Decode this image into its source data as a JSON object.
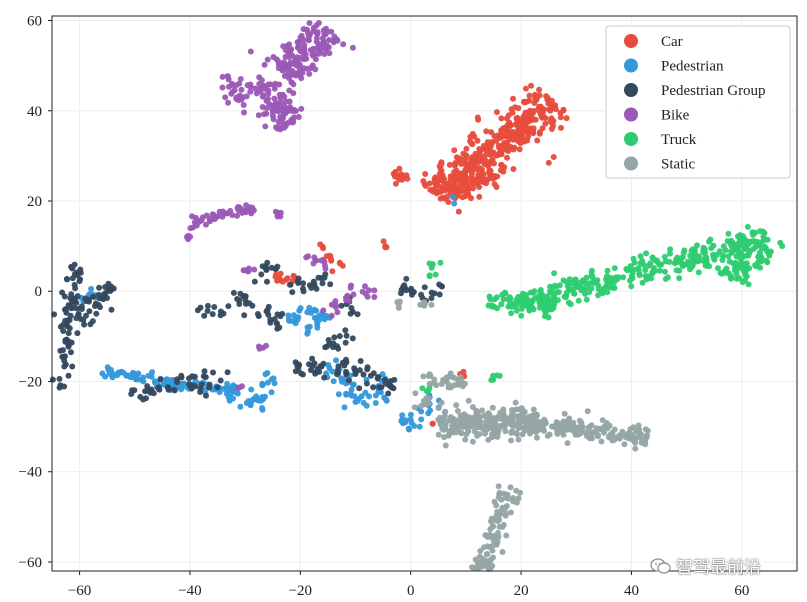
{
  "chart_data": {
    "type": "scatter",
    "title": "",
    "xlabel": "",
    "ylabel": "",
    "xlim": [
      -65,
      70
    ],
    "ylim": [
      -62,
      61
    ],
    "xticks": [
      -60,
      -40,
      -20,
      0,
      20,
      40,
      60
    ],
    "yticks": [
      -60,
      -40,
      -20,
      0,
      20,
      40,
      60
    ],
    "grid": true,
    "legend_position": "top-right",
    "series": [
      {
        "name": "Car",
        "color": "#e74c3c",
        "clusters": [
          {
            "cx": 15,
            "cy": 32,
            "len": 30,
            "width": 5,
            "angle": 43,
            "n": 360
          },
          {
            "cx": 11,
            "cy": 24,
            "len": 9,
            "width": 3,
            "angle": 20,
            "n": 60
          },
          {
            "cx": -2,
            "cy": 25.5,
            "len": 3,
            "width": 2,
            "angle": 0,
            "n": 18
          },
          {
            "cx": -23,
            "cy": 3,
            "len": 3,
            "width": 2,
            "angle": 60,
            "n": 14
          },
          {
            "cx": -14,
            "cy": 6.5,
            "len": 4,
            "width": 2,
            "angle": -60,
            "n": 10
          },
          {
            "cx": -16,
            "cy": 9.5,
            "len": 1,
            "width": 1,
            "angle": 0,
            "n": 3
          },
          {
            "cx": -5,
            "cy": 10,
            "len": 2,
            "width": 1,
            "angle": 0,
            "n": 4
          },
          {
            "cx": 9,
            "cy": -18.5,
            "len": 1.5,
            "width": 1,
            "angle": 0,
            "n": 4
          },
          {
            "cx": 4,
            "cy": -29.5,
            "len": 1,
            "width": 1,
            "angle": 0,
            "n": 2
          }
        ]
      },
      {
        "name": "Pedestrian",
        "color": "#3498db",
        "clusters": [
          {
            "cx": -50,
            "cy": -19,
            "len": 12,
            "width": 1.5,
            "angle": -12,
            "n": 45
          },
          {
            "cx": -38,
            "cy": -21,
            "len": 14,
            "width": 1.5,
            "angle": -5,
            "n": 60
          },
          {
            "cx": -30,
            "cy": -23.5,
            "len": 8,
            "width": 2,
            "angle": -15,
            "n": 30
          },
          {
            "cx": -20,
            "cy": -5,
            "len": 6,
            "width": 2,
            "angle": 30,
            "n": 18
          },
          {
            "cx": -17,
            "cy": -7,
            "len": 6,
            "width": 2,
            "angle": 45,
            "n": 18
          },
          {
            "cx": -12,
            "cy": -20,
            "len": 10,
            "width": 3,
            "angle": -60,
            "n": 30
          },
          {
            "cx": -6,
            "cy": -22,
            "len": 8,
            "width": 3,
            "angle": 70,
            "n": 20
          },
          {
            "cx": 0,
            "cy": -29,
            "len": 4,
            "width": 2,
            "angle": -20,
            "n": 14
          },
          {
            "cx": -26,
            "cy": -20,
            "len": 4,
            "width": 2,
            "angle": 70,
            "n": 10
          },
          {
            "cx": 3,
            "cy": -25,
            "len": 4,
            "width": 2,
            "angle": 60,
            "n": 10
          },
          {
            "cx": -58,
            "cy": -1,
            "len": 4,
            "width": 1.5,
            "angle": 20,
            "n": 10
          },
          {
            "cx": 8,
            "cy": 20,
            "len": 1,
            "width": 1,
            "angle": 0,
            "n": 2
          }
        ]
      },
      {
        "name": "Pedestrian Group",
        "color": "#34495e",
        "clusters": [
          {
            "cx": -62,
            "cy": -8,
            "len": 28,
            "width": 2,
            "angle": 85,
            "n": 70
          },
          {
            "cx": -56,
            "cy": -1,
            "len": 6,
            "width": 2,
            "angle": 45,
            "n": 25
          },
          {
            "cx": -59,
            "cy": -5,
            "len": 6,
            "width": 2,
            "angle": -20,
            "n": 15
          },
          {
            "cx": -45,
            "cy": -21,
            "len": 12,
            "width": 2,
            "angle": 20,
            "n": 30
          },
          {
            "cx": -36,
            "cy": -20,
            "len": 8,
            "width": 2,
            "angle": 40,
            "n": 18
          },
          {
            "cx": -28,
            "cy": -4,
            "len": 12,
            "width": 2,
            "angle": -40,
            "n": 30
          },
          {
            "cx": -26,
            "cy": 4,
            "len": 6,
            "width": 2,
            "angle": 70,
            "n": 14
          },
          {
            "cx": -18,
            "cy": -17,
            "len": 6,
            "width": 3,
            "angle": 0,
            "n": 22
          },
          {
            "cx": -8,
            "cy": -19,
            "len": 12,
            "width": 3,
            "angle": -30,
            "n": 40
          },
          {
            "cx": -13,
            "cy": -11,
            "len": 6,
            "width": 2,
            "angle": 30,
            "n": 14
          },
          {
            "cx": -20,
            "cy": 1,
            "len": 4,
            "width": 2,
            "angle": 20,
            "n": 10
          },
          {
            "cx": 2,
            "cy": 0,
            "len": 8,
            "width": 2,
            "angle": -10,
            "n": 24
          },
          {
            "cx": -16,
            "cy": 2,
            "len": 4,
            "width": 2,
            "angle": 70,
            "n": 10
          },
          {
            "cx": -11,
            "cy": -4,
            "len": 4,
            "width": 2,
            "angle": -40,
            "n": 8
          },
          {
            "cx": -36,
            "cy": -4,
            "len": 5,
            "width": 2,
            "angle": -30,
            "n": 10
          }
        ]
      },
      {
        "name": "Bike",
        "color": "#9b59b6",
        "clusters": [
          {
            "cx": -19,
            "cy": 53,
            "len": 14,
            "width": 5,
            "angle": 50,
            "n": 140
          },
          {
            "cx": -25,
            "cy": 42,
            "len": 12,
            "width": 4,
            "angle": -55,
            "n": 100
          },
          {
            "cx": -32,
            "cy": 45,
            "len": 6,
            "width": 2,
            "angle": -80,
            "n": 25
          },
          {
            "cx": -34,
            "cy": 17,
            "len": 12,
            "width": 1.5,
            "angle": 15,
            "n": 40
          },
          {
            "cx": -40,
            "cy": 13,
            "len": 3,
            "width": 1,
            "angle": 60,
            "n": 8
          },
          {
            "cx": -23,
            "cy": 17,
            "len": 3,
            "width": 1,
            "angle": 0,
            "n": 6
          },
          {
            "cx": -17,
            "cy": 7,
            "len": 5,
            "width": 1.5,
            "angle": -40,
            "n": 10
          },
          {
            "cx": -29,
            "cy": 5,
            "len": 3,
            "width": 1,
            "angle": 30,
            "n": 6
          },
          {
            "cx": -13,
            "cy": -3,
            "len": 6,
            "width": 1.5,
            "angle": 40,
            "n": 12
          },
          {
            "cx": -9,
            "cy": 0,
            "len": 5,
            "width": 1.5,
            "angle": 0,
            "n": 10
          },
          {
            "cx": -27,
            "cy": -12,
            "len": 2,
            "width": 1,
            "angle": 0,
            "n": 4
          },
          {
            "cx": -31,
            "cy": -21,
            "len": 2,
            "width": 1,
            "angle": 0,
            "n": 3
          }
        ]
      },
      {
        "name": "Truck",
        "color": "#2ecc71",
        "clusters": [
          {
            "cx": 40,
            "cy": 4,
            "len": 44,
            "width": 3,
            "angle": 18,
            "n": 260
          },
          {
            "cx": 61,
            "cy": 8,
            "len": 12,
            "width": 5,
            "angle": 60,
            "n": 120
          },
          {
            "cx": 20,
            "cy": -3,
            "len": 12,
            "width": 2,
            "angle": -8,
            "n": 60
          },
          {
            "cx": 4,
            "cy": 5,
            "len": 4,
            "width": 1,
            "angle": 80,
            "n": 8
          },
          {
            "cx": 15,
            "cy": -19.5,
            "len": 3,
            "width": 1,
            "angle": 40,
            "n": 6
          },
          {
            "cx": 3,
            "cy": -22,
            "len": 2,
            "width": 1,
            "angle": 0,
            "n": 4
          }
        ]
      },
      {
        "name": "Static",
        "color": "#95a5a6",
        "clusters": [
          {
            "cx": 14,
            "cy": -29,
            "len": 18,
            "width": 4,
            "angle": 0,
            "n": 240
          },
          {
            "cx": 33,
            "cy": -31,
            "len": 22,
            "width": 2.5,
            "angle": -8,
            "n": 140
          },
          {
            "cx": 15,
            "cy": -55,
            "len": 24,
            "width": 2.5,
            "angle": 75,
            "n": 120
          },
          {
            "cx": 6,
            "cy": -20,
            "len": 8,
            "width": 2,
            "angle": -10,
            "n": 30
          },
          {
            "cx": 2,
            "cy": -25,
            "len": 4,
            "width": 2,
            "angle": 40,
            "n": 10
          },
          {
            "cx": 3,
            "cy": -3,
            "len": 3,
            "width": 1,
            "angle": 0,
            "n": 6
          },
          {
            "cx": -2,
            "cy": -3,
            "len": 2,
            "width": 1,
            "angle": 0,
            "n": 4
          }
        ]
      }
    ]
  },
  "watermark": {
    "text": "智驾最前沿",
    "icon": "wechat-icon"
  }
}
